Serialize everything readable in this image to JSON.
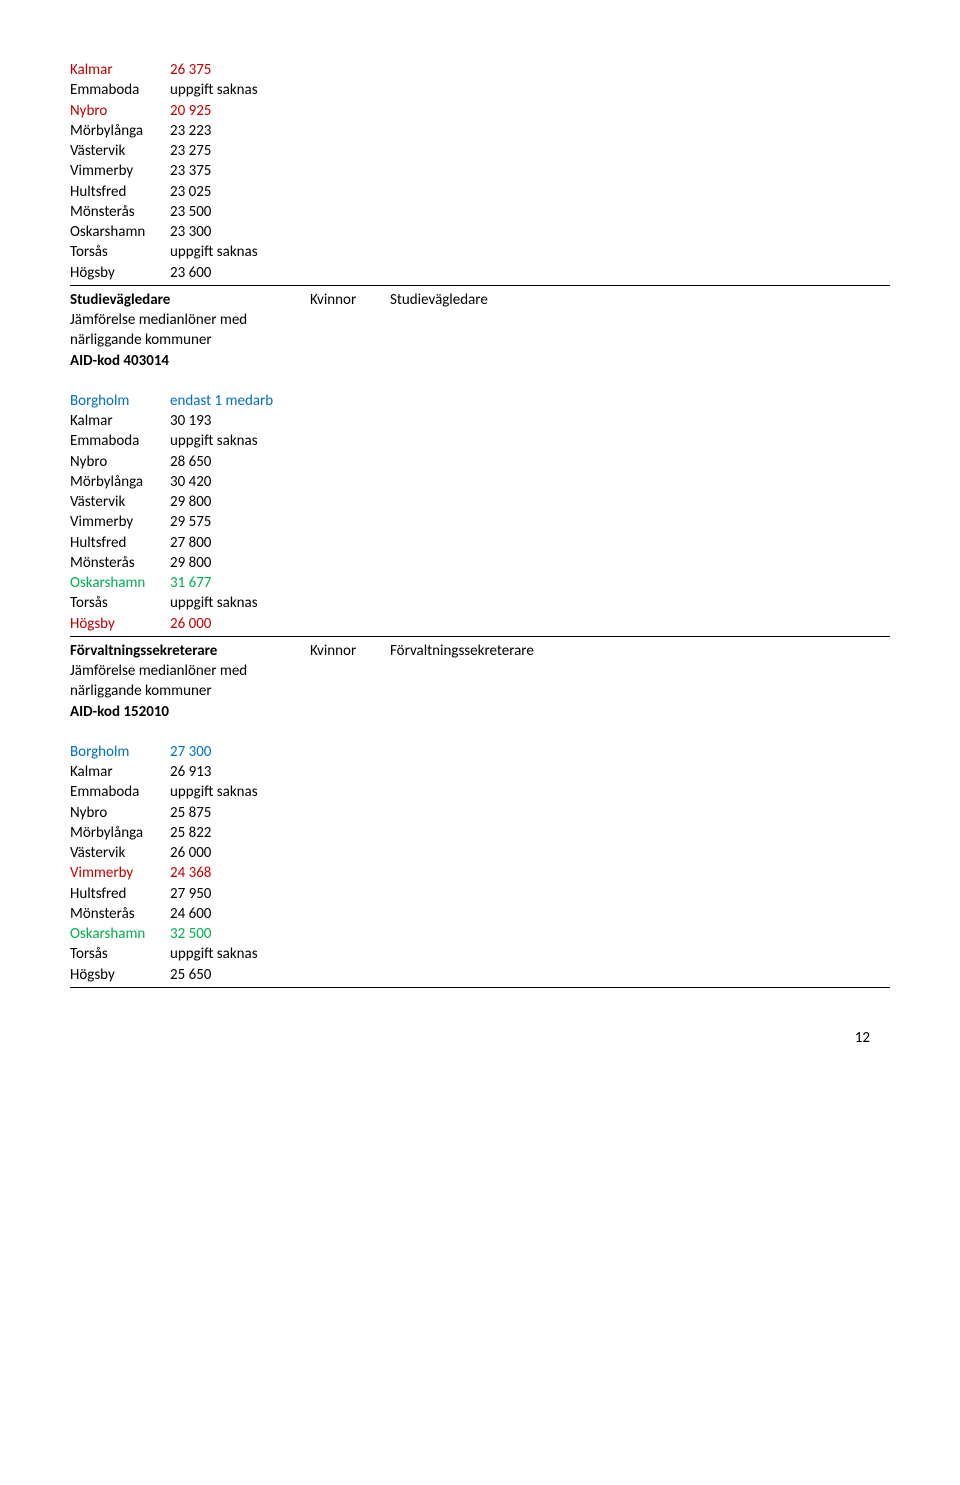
{
  "block1": {
    "rows": [
      {
        "label": "Kalmar",
        "value": "26 375",
        "labelColor": "#c00000",
        "valueColor": "#c00000"
      },
      {
        "label": "Emmaboda",
        "value": "uppgift saknas",
        "labelColor": "#000",
        "valueColor": "#000"
      },
      {
        "label": "Nybro",
        "value": "20 925",
        "labelColor": "#c00000",
        "valueColor": "#c00000"
      },
      {
        "label": "Mörbylånga",
        "value": "23 223",
        "labelColor": "#000",
        "valueColor": "#000"
      },
      {
        "label": "Västervik",
        "value": "23 275",
        "labelColor": "#000",
        "valueColor": "#000"
      },
      {
        "label": "Vimmerby",
        "value": "23 375",
        "labelColor": "#000",
        "valueColor": "#000"
      },
      {
        "label": "Hultsfred",
        "value": "23 025",
        "labelColor": "#000",
        "valueColor": "#000"
      },
      {
        "label": "Mönsterås",
        "value": "23 500",
        "labelColor": "#000",
        "valueColor": "#000"
      },
      {
        "label": "Oskarshamn",
        "value": "23 300",
        "labelColor": "#000",
        "valueColor": "#000"
      },
      {
        "label": "Torsås",
        "value": "uppgift saknas",
        "labelColor": "#000",
        "valueColor": "#000"
      },
      {
        "label": "Högsby",
        "value": "23 600",
        "labelColor": "#000",
        "valueColor": "#000"
      }
    ]
  },
  "section1": {
    "title": "Studievägledare",
    "line2": "Jämförelse medianlöner med",
    "line3": "närliggande kommuner",
    "line4": "AID-kod 403014",
    "kvinnor": "Kvinnor",
    "right": "Studievägledare"
  },
  "block2": {
    "rows": [
      {
        "label": "Borgholm",
        "value": "endast 1 medarb",
        "labelColor": "#0070c0",
        "valueColor": "#0070c0"
      },
      {
        "label": "Kalmar",
        "value": "30 193",
        "labelColor": "#000",
        "valueColor": "#000"
      },
      {
        "label": "Emmaboda",
        "value": "uppgift saknas",
        "labelColor": "#000",
        "valueColor": "#000"
      },
      {
        "label": "Nybro",
        "value": "28 650",
        "labelColor": "#000",
        "valueColor": "#000"
      },
      {
        "label": "Mörbylånga",
        "value": "30 420",
        "labelColor": "#000",
        "valueColor": "#000"
      },
      {
        "label": "Västervik",
        "value": "29 800",
        "labelColor": "#000",
        "valueColor": "#000"
      },
      {
        "label": "Vimmerby",
        "value": "29 575",
        "labelColor": "#000",
        "valueColor": "#000"
      },
      {
        "label": "Hultsfred",
        "value": "27 800",
        "labelColor": "#000",
        "valueColor": "#000"
      },
      {
        "label": "Mönsterås",
        "value": "29 800",
        "labelColor": "#000",
        "valueColor": "#000"
      },
      {
        "label": "Oskarshamn",
        "value": "31 677",
        "labelColor": "#00b050",
        "valueColor": "#00b050"
      },
      {
        "label": "Torsås",
        "value": "uppgift saknas",
        "labelColor": "#000",
        "valueColor": "#000"
      },
      {
        "label": "Högsby",
        "value": "26 000",
        "labelColor": "#c00000",
        "valueColor": "#c00000"
      }
    ]
  },
  "section2": {
    "title": "Förvaltningssekreterare",
    "line2": "Jämförelse medianlöner med",
    "line3": "närliggande kommuner",
    "line4": "AID-kod 152010",
    "kvinnor": "Kvinnor",
    "right": "Förvaltningssekreterare"
  },
  "block3": {
    "rows": [
      {
        "label": "Borgholm",
        "value": "27 300",
        "labelColor": "#0070c0",
        "valueColor": "#0070c0"
      },
      {
        "label": "Kalmar",
        "value": "26 913",
        "labelColor": "#000",
        "valueColor": "#000"
      },
      {
        "label": "Emmaboda",
        "value": "uppgift saknas",
        "labelColor": "#000",
        "valueColor": "#000"
      },
      {
        "label": "Nybro",
        "value": "25 875",
        "labelColor": "#000",
        "valueColor": "#000"
      },
      {
        "label": "Mörbylånga",
        "value": "25 822",
        "labelColor": "#000",
        "valueColor": "#000"
      },
      {
        "label": "Västervik",
        "value": "26 000",
        "labelColor": "#000",
        "valueColor": "#000"
      },
      {
        "label": "Vimmerby",
        "value": "24 368",
        "labelColor": "#c00000",
        "valueColor": "#c00000"
      },
      {
        "label": "Hultsfred",
        "value": "27 950",
        "labelColor": "#000",
        "valueColor": "#000"
      },
      {
        "label": "Mönsterås",
        "value": "24 600",
        "labelColor": "#000",
        "valueColor": "#000"
      },
      {
        "label": "Oskarshamn",
        "value": "32 500",
        "labelColor": "#00b050",
        "valueColor": "#00b050"
      },
      {
        "label": "Torsås",
        "value": "uppgift saknas",
        "labelColor": "#000",
        "valueColor": "#000"
      },
      {
        "label": "Högsby",
        "value": "25 650",
        "labelColor": "#000",
        "valueColor": "#000"
      }
    ]
  },
  "pageNumber": "12"
}
